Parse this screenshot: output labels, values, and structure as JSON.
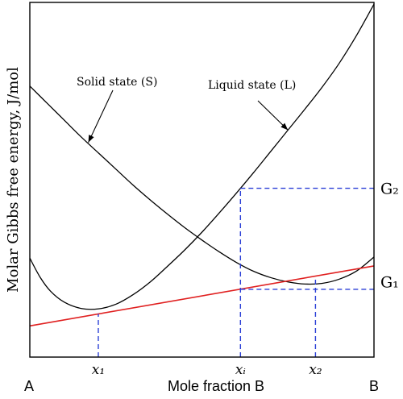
{
  "chart_data": {
    "type": "line",
    "title": "",
    "xlabel": "Mole fraction B",
    "ylabel": "Molar Gibbs free energy, J/mol",
    "x_end_labels": {
      "left": "A",
      "right": "B"
    },
    "xlim": [
      0,
      1
    ],
    "ylim": [
      0,
      1
    ],
    "grid": false,
    "legend": "none",
    "colors": {
      "curve": "#000000",
      "tangent": "#e02020",
      "guide": "#2a3fd6"
    },
    "series": [
      {
        "name": "Solid state (S)",
        "x": [
          0.0,
          0.05,
          0.1,
          0.15,
          0.2,
          0.25,
          0.3,
          0.35,
          0.4,
          0.45,
          0.5,
          0.55,
          0.6,
          0.65,
          0.7,
          0.75,
          0.8,
          0.85,
          0.9,
          0.95,
          1.0
        ],
        "y": [
          0.764,
          0.716,
          0.668,
          0.62,
          0.575,
          0.53,
          0.485,
          0.443,
          0.403,
          0.365,
          0.33,
          0.297,
          0.267,
          0.242,
          0.224,
          0.212,
          0.206,
          0.208,
          0.22,
          0.243,
          0.282
        ]
      },
      {
        "name": "Liquid state (L)",
        "x": [
          0.0,
          0.03,
          0.06,
          0.1,
          0.15,
          0.2,
          0.25,
          0.3,
          0.35,
          0.4,
          0.45,
          0.5,
          0.55,
          0.6,
          0.65,
          0.7,
          0.75,
          0.8,
          0.85,
          0.9,
          0.95,
          1.0
        ],
        "y": [
          0.279,
          0.225,
          0.186,
          0.155,
          0.137,
          0.136,
          0.149,
          0.176,
          0.212,
          0.256,
          0.302,
          0.352,
          0.406,
          0.462,
          0.52,
          0.58,
          0.64,
          0.7,
          0.762,
          0.83,
          0.908,
          0.995
        ]
      },
      {
        "name": "Common tangent",
        "x": [
          0.0,
          1.0
        ],
        "y": [
          0.088,
          0.257
        ]
      }
    ],
    "annotations": [
      {
        "text": "Solid state (S)",
        "points_to": {
          "x": 0.17,
          "y": 0.605
        }
      },
      {
        "text": "Liquid state (L)",
        "points_to": {
          "x": 0.75,
          "y": 0.64
        }
      }
    ],
    "x_ticks": [
      {
        "label": "x₁",
        "x": 0.199
      },
      {
        "label": "xᵢ",
        "x": 0.612
      },
      {
        "label": "x₂",
        "x": 0.83
      }
    ],
    "y_ticks": [
      {
        "label": "G₂",
        "y": 0.476
      },
      {
        "label": "G₁",
        "y": 0.213
      }
    ],
    "guides": [
      {
        "from": [
          0.199,
          0.0
        ],
        "to": [
          0.199,
          0.122
        ]
      },
      {
        "from": [
          0.612,
          0.0
        ],
        "to": [
          0.612,
          0.476
        ]
      },
      {
        "from": [
          0.612,
          0.476
        ],
        "to": [
          1.0,
          0.476
        ]
      },
      {
        "from": [
          0.612,
          0.191
        ],
        "to": [
          1.0,
          0.191
        ]
      },
      {
        "from": [
          0.83,
          0.0
        ],
        "to": [
          0.83,
          0.227
        ]
      }
    ]
  }
}
